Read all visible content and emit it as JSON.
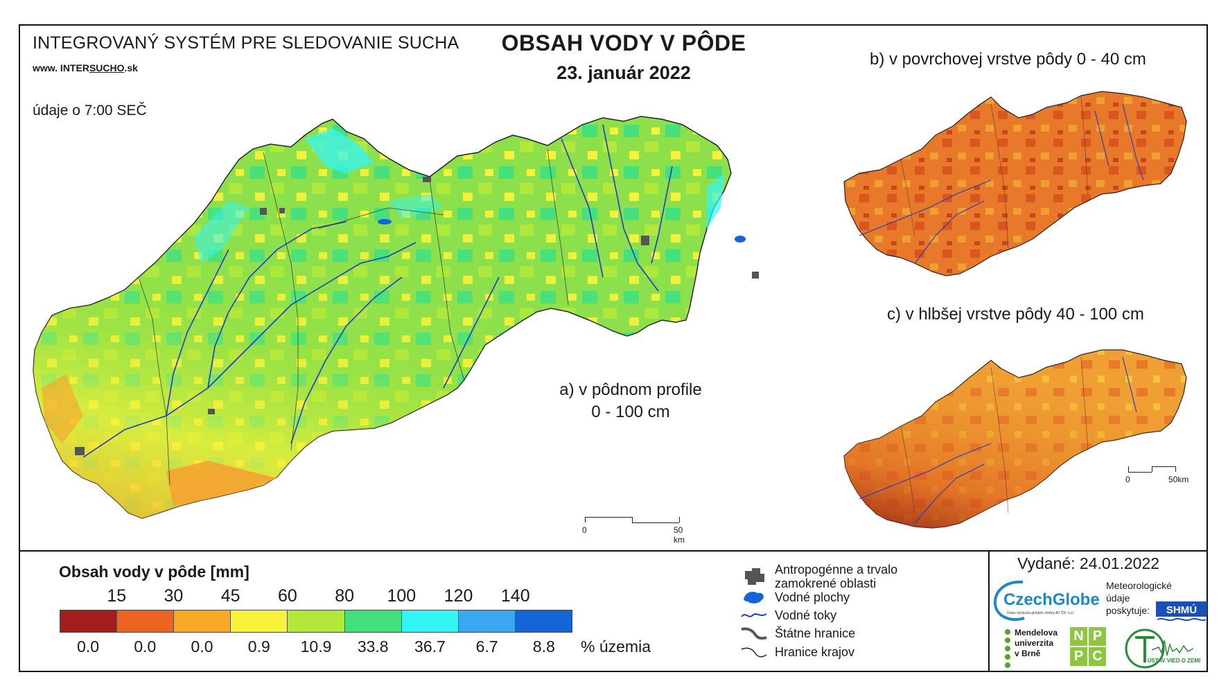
{
  "header": {
    "system_title": "INTEGROVANÝ SYSTÉM PRE SLEDOVANIE SUCHA",
    "website_prefix": "www. INTER",
    "website_highlight": "SUCHO",
    "website_suffix": ".sk",
    "observation_time": "údaje o 7:00 SEČ",
    "main_title": "OBSAH VODY V PÔDE",
    "date": "23. január 2022"
  },
  "maps": {
    "a_label_line1": "a) v pôdnom profile",
    "a_label_line2": "0 - 100 cm",
    "b_label": "b) v povrchovej vrstve pôdy 0 - 40 cm",
    "c_label": "c) v hlbšej vrstve pôdy 40 - 100 cm",
    "scale_main": {
      "zero": "0",
      "end": "50 km"
    },
    "scale_small": {
      "zero": "0",
      "end": "50km"
    }
  },
  "legend": {
    "title": "Obsah vody v pôde  [mm]",
    "thresholds": [
      "15",
      "30",
      "45",
      "60",
      "80",
      "100",
      "120",
      "140"
    ],
    "classes": [
      {
        "color": "#a61c1c",
        "percent": "0.0"
      },
      {
        "color": "#ec6420",
        "percent": "0.0"
      },
      {
        "color": "#f9a825",
        "percent": "0.0"
      },
      {
        "color": "#f8f23a",
        "percent": "0.9"
      },
      {
        "color": "#b2e83a",
        "percent": "10.9"
      },
      {
        "color": "#45e07e",
        "percent": "33.8"
      },
      {
        "color": "#33f5f5",
        "percent": "36.7"
      },
      {
        "color": "#3aa8f0",
        "percent": "6.7"
      },
      {
        "color": "#1565d8",
        "percent": "8.8"
      }
    ],
    "percent_unit": "% územia"
  },
  "symbols": [
    {
      "icon": "urban-area-icon",
      "label": "Antropogénne a trvalo zamokrené oblasti"
    },
    {
      "icon": "water-body-icon",
      "label": "Vodné plochy"
    },
    {
      "icon": "river-icon",
      "label": "Vodné toky"
    },
    {
      "icon": "state-border-icon",
      "label": "Štátne hranice"
    },
    {
      "icon": "region-border-icon",
      "label": "Hranice krajov"
    }
  ],
  "footer": {
    "issued": "Vydané: 24.01.2022",
    "czechglobe": "CzechGlobe",
    "czechglobe_sub": "Ústav výzkumu globální změny AV ČR, v.v.i.",
    "meteo_line1": "Meteorologické",
    "meteo_line2": "údaje",
    "meteo_line3": "poskytuje:",
    "shmu": "SHMÚ",
    "mendel_line1": "Mendelova",
    "mendel_line2": "univerzita",
    "mendel_line3": "v Brně",
    "nppc": [
      "N",
      "P",
      "P",
      "C"
    ],
    "uvz": "ÚSTAV VIED O ZEMI"
  },
  "colors": {
    "map_a_base": "#7fdb45",
    "map_b_base": "#e8792a",
    "map_c_base": "#f0a033",
    "rivers": "#2238c8",
    "urban": "#555555"
  }
}
